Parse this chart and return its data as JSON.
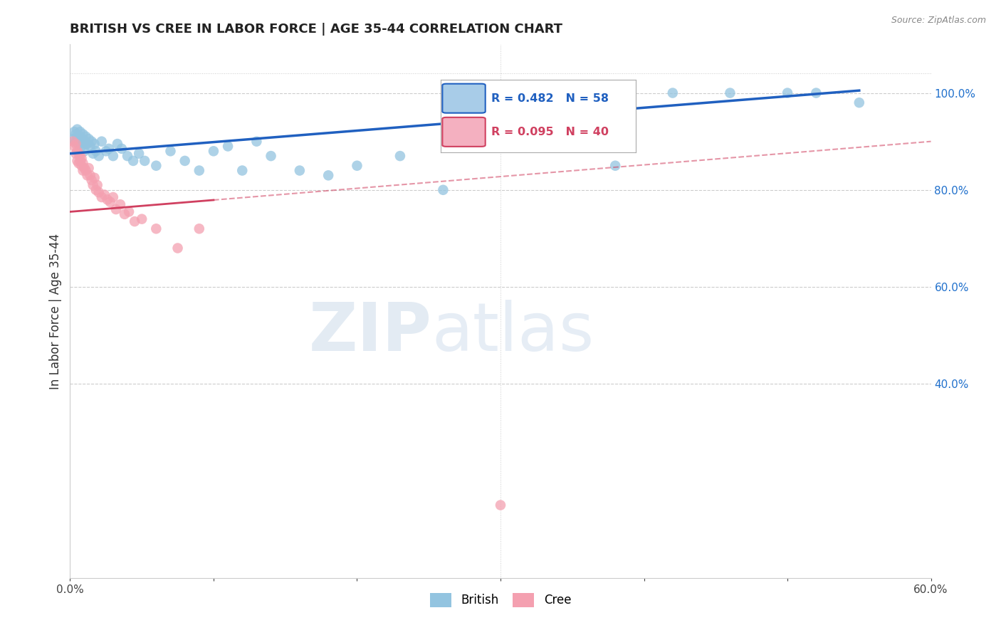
{
  "title": "BRITISH VS CREE IN LABOR FORCE | AGE 35-44 CORRELATION CHART",
  "source": "Source: ZipAtlas.com",
  "ylabel_left": "In Labor Force | Age 35-44",
  "x_min": 0.0,
  "x_max": 0.6,
  "y_min": 0.0,
  "y_max": 1.1,
  "y_ticks_right": [
    0.4,
    0.6,
    0.8,
    1.0
  ],
  "y_tick_labels_right": [
    "40.0%",
    "60.0%",
    "80.0%",
    "100.0%"
  ],
  "british_color": "#93c4e0",
  "cree_color": "#f4a0b0",
  "british_line_color": "#2060c0",
  "cree_line_color": "#d04060",
  "british_R": 0.482,
  "british_N": 58,
  "cree_R": 0.095,
  "cree_N": 40,
  "british_x": [
    0.002,
    0.003,
    0.004,
    0.004,
    0.005,
    0.005,
    0.006,
    0.006,
    0.007,
    0.007,
    0.008,
    0.008,
    0.009,
    0.009,
    0.01,
    0.01,
    0.011,
    0.011,
    0.012,
    0.013,
    0.014,
    0.015,
    0.016,
    0.017,
    0.018,
    0.02,
    0.022,
    0.025,
    0.027,
    0.03,
    0.033,
    0.036,
    0.04,
    0.044,
    0.048,
    0.052,
    0.06,
    0.07,
    0.08,
    0.09,
    0.1,
    0.11,
    0.12,
    0.13,
    0.14,
    0.16,
    0.18,
    0.2,
    0.23,
    0.26,
    0.3,
    0.34,
    0.38,
    0.42,
    0.46,
    0.5,
    0.52,
    0.55
  ],
  "british_y": [
    0.905,
    0.92,
    0.9,
    0.915,
    0.91,
    0.925,
    0.895,
    0.905,
    0.91,
    0.92,
    0.89,
    0.9,
    0.905,
    0.915,
    0.88,
    0.9,
    0.895,
    0.91,
    0.895,
    0.905,
    0.89,
    0.9,
    0.875,
    0.895,
    0.88,
    0.87,
    0.9,
    0.88,
    0.885,
    0.87,
    0.895,
    0.885,
    0.87,
    0.86,
    0.875,
    0.86,
    0.85,
    0.88,
    0.86,
    0.84,
    0.88,
    0.89,
    0.84,
    0.9,
    0.87,
    0.84,
    0.83,
    0.85,
    0.87,
    0.8,
    0.9,
    0.89,
    0.85,
    1.0,
    1.0,
    1.0,
    1.0,
    0.98
  ],
  "cree_x": [
    0.002,
    0.003,
    0.004,
    0.004,
    0.005,
    0.005,
    0.006,
    0.006,
    0.007,
    0.007,
    0.008,
    0.008,
    0.009,
    0.009,
    0.01,
    0.011,
    0.012,
    0.013,
    0.014,
    0.015,
    0.016,
    0.017,
    0.018,
    0.019,
    0.02,
    0.022,
    0.024,
    0.026,
    0.028,
    0.03,
    0.032,
    0.035,
    0.038,
    0.041,
    0.045,
    0.05,
    0.06,
    0.075,
    0.09,
    0.3
  ],
  "cree_y": [
    0.9,
    0.89,
    0.875,
    0.895,
    0.86,
    0.88,
    0.875,
    0.855,
    0.87,
    0.86,
    0.85,
    0.865,
    0.84,
    0.855,
    0.845,
    0.84,
    0.83,
    0.845,
    0.83,
    0.82,
    0.81,
    0.825,
    0.8,
    0.81,
    0.795,
    0.785,
    0.79,
    0.78,
    0.775,
    0.785,
    0.76,
    0.77,
    0.75,
    0.755,
    0.735,
    0.74,
    0.72,
    0.68,
    0.72,
    0.15
  ],
  "watermark_zip": "ZIP",
  "watermark_atlas": "atlas",
  "background_color": "#ffffff",
  "grid_color": "#cccccc",
  "legend_british_label": "British",
  "legend_cree_label": "Cree"
}
